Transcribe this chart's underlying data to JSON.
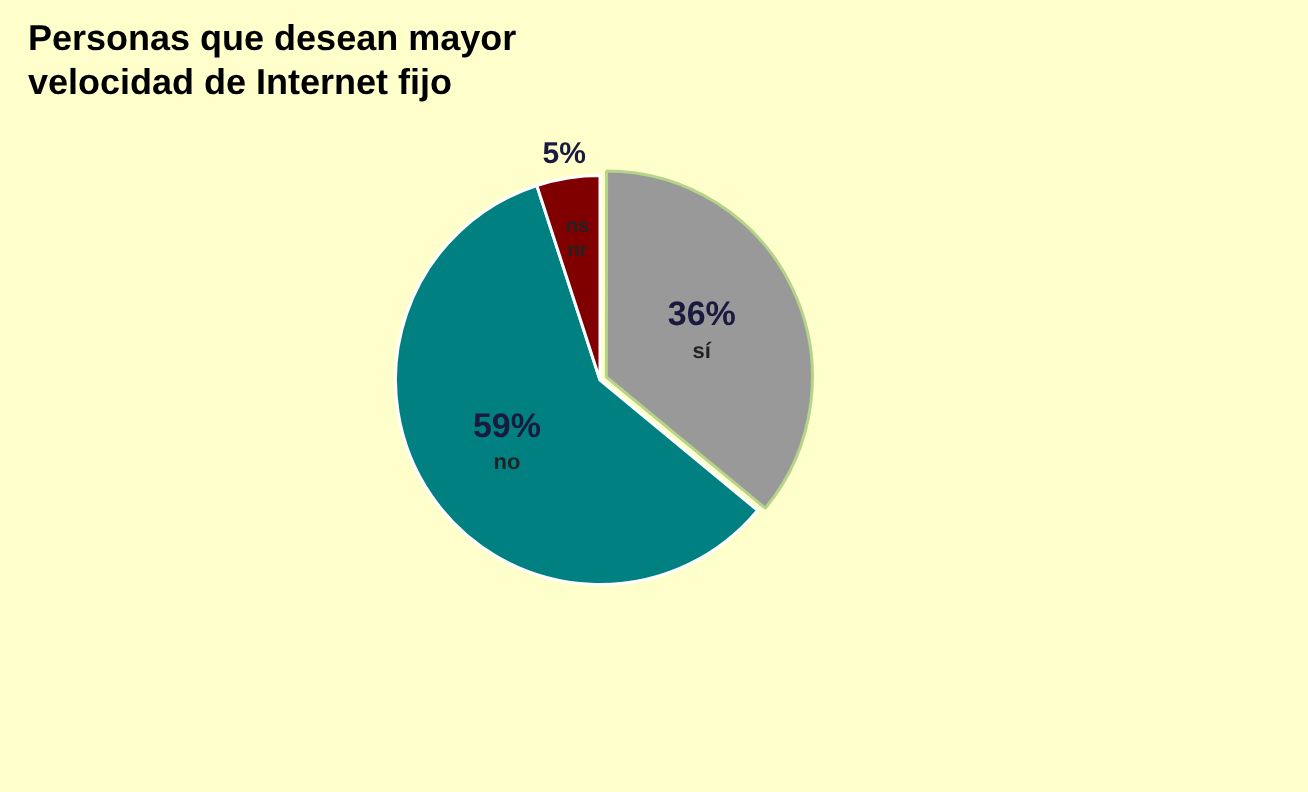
{
  "chart_data": {
    "type": "pie",
    "title": "Personas que desean mayor velocidad de Internet fijo",
    "categories": [
      "sí",
      "no",
      "ns nr"
    ],
    "values": [
      36,
      59,
      5
    ],
    "colors": [
      "#999999",
      "#008080",
      "#800000"
    ],
    "value_labels": [
      "36%",
      "59%",
      "5%"
    ],
    "legend": false
  }
}
